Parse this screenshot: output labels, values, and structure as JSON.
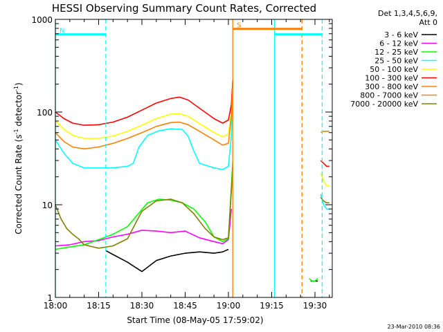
{
  "chart_data": {
    "type": "line",
    "title": "HESSI Observing Summary Count Rates, Corrected",
    "xlabel": "Start Time (08-May-05 17:59:02)",
    "ylabel_parts": [
      "Corrected Count Rate (s",
      "-1",
      " detector",
      "-1",
      ")"
    ],
    "yscale": "log",
    "ylim": [
      1,
      1000
    ],
    "xlim_minutes": [
      0,
      96
    ],
    "x_ticks": [
      {
        "min": 0,
        "label": "18:00"
      },
      {
        "min": 15,
        "label": "18:15"
      },
      {
        "min": 30,
        "label": "18:30"
      },
      {
        "min": 45,
        "label": "18:45"
      },
      {
        "min": 60,
        "label": "19:00"
      },
      {
        "min": 75,
        "label": "19:15"
      },
      {
        "min": 90,
        "label": "19:30"
      }
    ],
    "y_ticks": [
      {
        "value": 1,
        "label": "1"
      },
      {
        "value": 10,
        "label": "10"
      },
      {
        "value": 100,
        "label": "100"
      },
      {
        "value": 1000,
        "label": "1000"
      }
    ],
    "legend_header": [
      "Det 1,3,4,5,6,9,",
      "Att 0"
    ],
    "legend_placement": "right",
    "markers": [
      {
        "label": "N",
        "color": "#00ffff",
        "start": 0,
        "end": 17.5,
        "y": 690
      },
      {
        "label": "S",
        "color": "#ff8000",
        "start": 61.5,
        "end": 85.5,
        "y": 790
      },
      {
        "label": "",
        "color": "#00ffff",
        "start": 76,
        "end": 92.5,
        "y": 690
      }
    ],
    "vlines": [
      {
        "x": 0,
        "color": "#00ffff",
        "dash": false
      },
      {
        "x": 17.5,
        "color": "#00ffff",
        "dash": true
      },
      {
        "x": 61.5,
        "color": "#ff8000",
        "dash": false
      },
      {
        "x": 76,
        "color": "#00ffff",
        "dash": false
      },
      {
        "x": 85.5,
        "color": "#ff8000",
        "dash": true
      },
      {
        "x": 92.5,
        "color": "#00ffff",
        "dash": true
      }
    ],
    "series": [
      {
        "name": "3 - 6 keV",
        "color": "#000000",
        "segments": [
          [
            [
              17.5,
              3.2
            ],
            [
              20,
              2.9
            ],
            [
              25,
              2.4
            ],
            [
              30,
              1.9
            ],
            [
              35,
              2.5
            ],
            [
              40,
              2.8
            ],
            [
              45,
              3.0
            ],
            [
              50,
              3.1
            ],
            [
              55,
              3.0
            ],
            [
              58,
              3.1
            ],
            [
              60,
              3.3
            ]
          ],
          [
            [
              88.5,
              1.5
            ],
            [
              91,
              1.5
            ]
          ]
        ]
      },
      {
        "name": "6 - 12 keV",
        "color": "#ff00ff",
        "segments": [
          [
            [
              0,
              3.6
            ],
            [
              5,
              3.7
            ],
            [
              10,
              4.0
            ],
            [
              15,
              4.1
            ],
            [
              20,
              4.5
            ],
            [
              25,
              4.8
            ],
            [
              30,
              5.3
            ],
            [
              35,
              5.2
            ],
            [
              40,
              5.0
            ],
            [
              45,
              5.2
            ],
            [
              50,
              4.4
            ],
            [
              55,
              4.0
            ],
            [
              58,
              3.8
            ],
            [
              60,
              4.2
            ],
            [
              61,
              9
            ]
          ]
        ]
      },
      {
        "name": "12 - 25 keV",
        "color": "#00ff00",
        "segments": [
          [
            [
              0,
              3.3
            ],
            [
              5,
              3.5
            ],
            [
              10,
              3.7
            ],
            [
              15,
              4.2
            ],
            [
              20,
              4.8
            ],
            [
              25,
              5.8
            ],
            [
              28,
              7.5
            ],
            [
              32,
              10.5
            ],
            [
              36,
              11.5
            ],
            [
              40,
              11.2
            ],
            [
              44,
              10.5
            ],
            [
              48,
              9.0
            ],
            [
              52,
              6.5
            ],
            [
              55,
              4.5
            ],
            [
              58,
              4.0
            ],
            [
              60,
              4.3
            ],
            [
              61.5,
              30
            ]
          ],
          [
            [
              88,
              1.6
            ],
            [
              89,
              1.5
            ],
            [
              90,
              1.5
            ],
            [
              91,
              1.6
            ]
          ]
        ]
      },
      {
        "name": "25 - 50 keV",
        "color": "#00ffff",
        "segments": [
          [
            [
              0,
              50
            ],
            [
              3,
              36
            ],
            [
              6,
              28
            ],
            [
              10,
              25
            ],
            [
              15,
              25
            ],
            [
              20,
              25
            ],
            [
              25,
              26
            ],
            [
              27,
              28
            ],
            [
              29,
              42
            ],
            [
              32,
              56
            ],
            [
              36,
              63
            ],
            [
              40,
              66
            ],
            [
              44,
              65
            ],
            [
              46,
              55
            ],
            [
              48,
              38
            ],
            [
              50,
              28
            ],
            [
              55,
              25
            ],
            [
              58,
              24
            ],
            [
              60,
              26
            ],
            [
              61,
              55
            ],
            [
              61.5,
              180
            ]
          ],
          [
            [
              92,
              13
            ],
            [
              93,
              10
            ],
            [
              94,
              9
            ],
            [
              95,
              9
            ]
          ]
        ]
      },
      {
        "name": "50 - 100 keV",
        "color": "#ffff00",
        "segments": [
          [
            [
              0,
              80
            ],
            [
              3,
              65
            ],
            [
              6,
              56
            ],
            [
              10,
              52
            ],
            [
              15,
              52
            ],
            [
              20,
              55
            ],
            [
              25,
              62
            ],
            [
              30,
              72
            ],
            [
              35,
              85
            ],
            [
              40,
              95
            ],
            [
              43,
              96
            ],
            [
              46,
              90
            ],
            [
              50,
              75
            ],
            [
              55,
              60
            ],
            [
              58,
              54
            ],
            [
              60,
              58
            ],
            [
              61,
              100
            ],
            [
              61.5,
              210
            ]
          ],
          [
            [
              92,
              22
            ],
            [
              93,
              18
            ],
            [
              94,
              16
            ],
            [
              95,
              16
            ]
          ]
        ]
      },
      {
        "name": "100 - 300 keV",
        "color": "#ff0000",
        "segments": [
          [
            [
              0,
              100
            ],
            [
              3,
              85
            ],
            [
              6,
              76
            ],
            [
              10,
              72
            ],
            [
              15,
              73
            ],
            [
              20,
              78
            ],
            [
              25,
              88
            ],
            [
              30,
              105
            ],
            [
              35,
              125
            ],
            [
              40,
              140
            ],
            [
              43,
              145
            ],
            [
              46,
              135
            ],
            [
              50,
              110
            ],
            [
              55,
              85
            ],
            [
              58,
              76
            ],
            [
              60,
              82
            ],
            [
              61,
              120
            ],
            [
              61.5,
              220
            ]
          ],
          [
            [
              92,
              30
            ],
            [
              93,
              28
            ],
            [
              94,
              26
            ],
            [
              95,
              26
            ]
          ]
        ]
      },
      {
        "name": "300 - 800 keV",
        "color": "#ff8000",
        "segments": [
          [
            [
              0,
              60
            ],
            [
              3,
              48
            ],
            [
              6,
              42
            ],
            [
              10,
              40
            ],
            [
              15,
              42
            ],
            [
              20,
              46
            ],
            [
              25,
              52
            ],
            [
              30,
              60
            ],
            [
              35,
              70
            ],
            [
              40,
              77
            ],
            [
              43,
              78
            ],
            [
              46,
              73
            ],
            [
              50,
              62
            ],
            [
              55,
              50
            ],
            [
              58,
              44
            ],
            [
              60,
              46
            ],
            [
              61,
              90
            ],
            [
              61.5,
              200
            ]
          ],
          [
            [
              92,
              60
            ],
            [
              93,
              62
            ],
            [
              94,
              62
            ],
            [
              95,
              62
            ]
          ]
        ]
      },
      {
        "name": "800 - 7000 keV",
        "color": "#ff8000",
        "segments": []
      },
      {
        "name": "7000 - 20000 keV",
        "color": "#808000",
        "segments": [
          [
            [
              0,
              10
            ],
            [
              2,
              7
            ],
            [
              4,
              5.5
            ],
            [
              6,
              4.8
            ],
            [
              8,
              4.3
            ],
            [
              10,
              3.7
            ],
            [
              15,
              3.4
            ],
            [
              20,
              3.6
            ],
            [
              25,
              4.3
            ],
            [
              28,
              6.5
            ],
            [
              30,
              8.5
            ],
            [
              35,
              11.0
            ],
            [
              40,
              11.5
            ],
            [
              44,
              10.5
            ],
            [
              48,
              8.0
            ],
            [
              52,
              5.5
            ],
            [
              55,
              4.5
            ],
            [
              58,
              4.2
            ],
            [
              60,
              4.4
            ],
            [
              61.5,
              25
            ]
          ],
          [
            [
              92,
              12
            ],
            [
              93,
              11
            ],
            [
              94,
              10.5
            ],
            [
              95,
              10.5
            ]
          ]
        ]
      }
    ],
    "timestamp": "23-Mar-2010 08:36"
  }
}
